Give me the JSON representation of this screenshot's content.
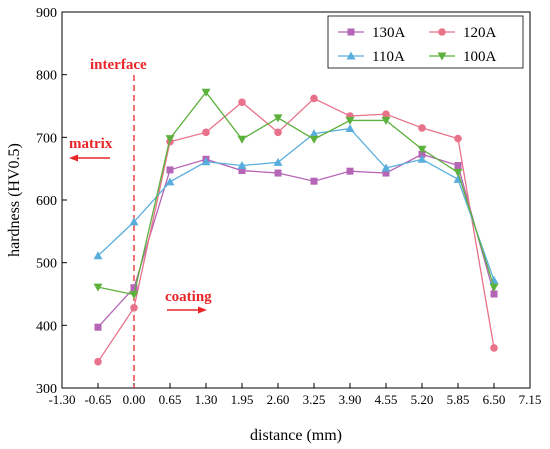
{
  "chart_data": {
    "type": "line",
    "title": "",
    "xlabel": "distance (mm)",
    "ylabel": "hardness (HV0.5)",
    "xlim": [
      -1.3,
      7.15
    ],
    "ylim": [
      300,
      900
    ],
    "x_ticks": [
      -1.3,
      -0.65,
      0.0,
      0.65,
      1.3,
      1.95,
      2.6,
      3.25,
      3.9,
      4.55,
      5.2,
      5.85,
      6.5,
      7.15
    ],
    "x_tick_labels": [
      "-1.30",
      "-0.65",
      "0.00",
      "0.65",
      "1.30",
      "1.95",
      "2.60",
      "3.25",
      "3.90",
      "4.55",
      "5.20",
      "5.85",
      "6.50",
      "7.15"
    ],
    "y_ticks": [
      300,
      400,
      500,
      600,
      700,
      800,
      900
    ],
    "y_tick_labels": [
      "300",
      "400",
      "500",
      "600",
      "700",
      "800",
      "900"
    ],
    "x": [
      -0.65,
      0.0,
      0.65,
      1.3,
      1.95,
      2.6,
      3.25,
      3.9,
      4.55,
      5.2,
      5.85,
      6.5
    ],
    "series": [
      {
        "name": "130A",
        "color": "#b565b5",
        "marker": "square",
        "values": [
          397,
          460,
          648,
          665,
          647,
          643,
          630,
          646,
          643,
          673,
          655,
          450
        ]
      },
      {
        "name": "120A",
        "color": "#e8728a",
        "marker": "circle",
        "values": [
          342,
          428,
          693,
          708,
          756,
          708,
          762,
          734,
          737,
          715,
          698,
          364
        ]
      },
      {
        "name": "110A",
        "color": "#5aaede",
        "marker": "triangle-up",
        "values": [
          511,
          565,
          629,
          661,
          655,
          660,
          706,
          714,
          651,
          665,
          633,
          472
        ]
      },
      {
        "name": "100A",
        "color": "#5cb03c",
        "marker": "triangle-down",
        "values": [
          461,
          449,
          698,
          772,
          697,
          731,
          697,
          727,
          727,
          681,
          644,
          461
        ]
      }
    ],
    "legend": {
      "placement": "top-right",
      "columns": 2
    },
    "grid": false,
    "annotations": {
      "interface": {
        "label": "interface",
        "x": 0.0,
        "color": "#e8262a"
      },
      "matrix": {
        "label": "matrix",
        "arrow": "left",
        "color": "#e8262a"
      },
      "coating": {
        "label": "coating",
        "arrow": "right",
        "color": "#e8262a"
      }
    }
  }
}
